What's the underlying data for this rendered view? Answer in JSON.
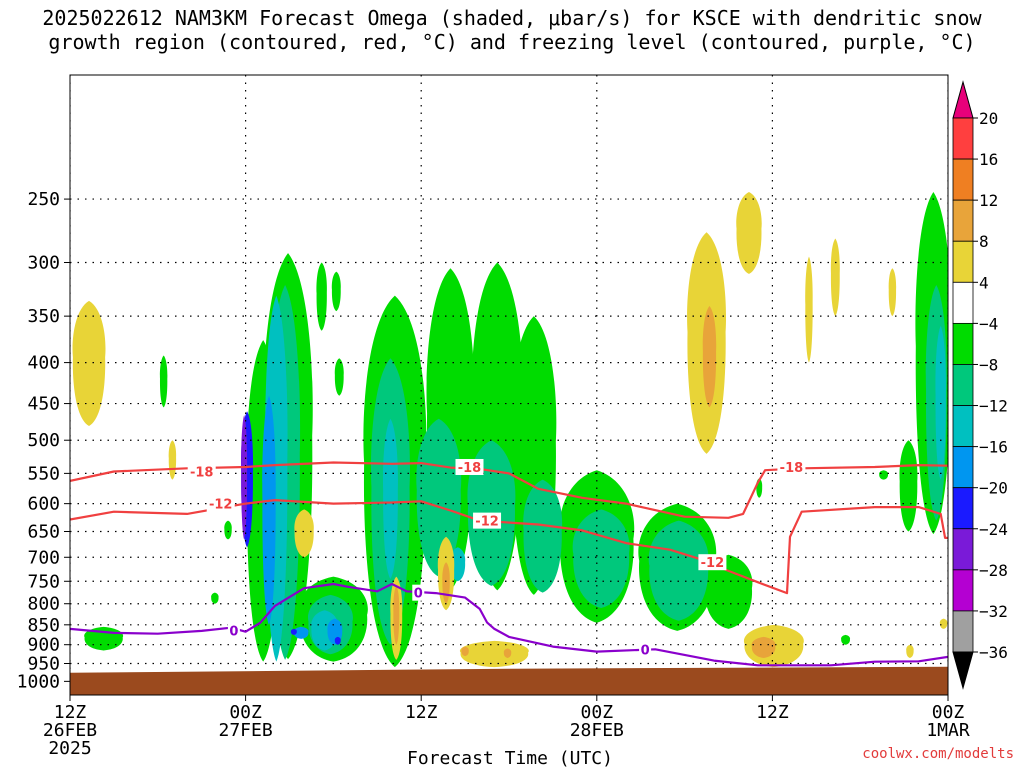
{
  "title": {
    "line1": "2025022612 NAM3KM Forecast Omega (shaded, μbar/s) for KSCE with dendritic snow",
    "line2": "growth region (contoured, red, °C) and freezing level (contoured, purple, °C)"
  },
  "watermark": "coolwx.com/modelts",
  "chart_data": {
    "type": "heatmap",
    "title": "2025022612 NAM3KM Forecast Omega (shaded, μbar/s) for KSCE with dendritic snow growth region (contoured, red, °C) and freezing level (contoured, purple, °C)",
    "xlabel": "Forecast Time (UTC)",
    "ylabel": "",
    "x_ticks": [
      {
        "hour": 0,
        "label": [
          "12Z",
          "26FEB",
          "2025"
        ]
      },
      {
        "hour": 12,
        "label": [
          "00Z",
          "27FEB"
        ]
      },
      {
        "hour": 24,
        "label": [
          "12Z"
        ]
      },
      {
        "hour": 36,
        "label": [
          "00Z",
          "28FEB"
        ]
      },
      {
        "hour": 48,
        "label": [
          "12Z"
        ]
      },
      {
        "hour": 60,
        "label": [
          "00Z",
          "1MAR"
        ]
      }
    ],
    "xlim": [
      0,
      60
    ],
    "y_ticks": [
      250,
      300,
      350,
      400,
      450,
      500,
      550,
      600,
      650,
      700,
      750,
      800,
      850,
      900,
      950,
      1000
    ],
    "ylim": [
      1040,
      175
    ],
    "grid": true,
    "colorbar": {
      "levels": [
        20,
        16,
        12,
        8,
        4,
        -4,
        -8,
        -12,
        -16,
        -20,
        -24,
        -28,
        -32,
        -36
      ],
      "colors": [
        "#ff3f3f",
        "#ef7f22",
        "#e8a43a",
        "#e8d437",
        "#ffffff",
        "#00dc00",
        "#00c87c",
        "#00c0c0",
        "#0096f0",
        "#1a1aff",
        "#7a1ad8",
        "#b400d2",
        "#a0a0a0"
      ],
      "over_color": "#e8007a",
      "under_color": "#000000"
    },
    "terrain": {
      "color": "#9b4a1e",
      "surface_pressure": 970
    },
    "dgz_contours": [
      {
        "label": "-18",
        "color": "#f04040",
        "points": [
          [
            0,
            562
          ],
          [
            3,
            547
          ],
          [
            8,
            542
          ],
          [
            12,
            540
          ],
          [
            14,
            537
          ],
          [
            18,
            533
          ],
          [
            22,
            535
          ],
          [
            24,
            534
          ],
          [
            26,
            541
          ],
          [
            28,
            543
          ],
          [
            30,
            550
          ],
          [
            32,
            575
          ],
          [
            35,
            590
          ],
          [
            38,
            600
          ],
          [
            42,
            623
          ],
          [
            45,
            625
          ],
          [
            46,
            618
          ],
          [
            47,
            565
          ],
          [
            47.5,
            545
          ],
          [
            50,
            542
          ],
          [
            55,
            540
          ],
          [
            58,
            537
          ],
          [
            60,
            538
          ]
        ]
      },
      {
        "label": "-12",
        "color": "#f04040",
        "points": [
          [
            0,
            628
          ],
          [
            3,
            614
          ],
          [
            8,
            618
          ],
          [
            12,
            600
          ],
          [
            14,
            594
          ],
          [
            18,
            600
          ],
          [
            22,
            598
          ],
          [
            24,
            596
          ],
          [
            26,
            612
          ],
          [
            28,
            630
          ],
          [
            32,
            637
          ],
          [
            35,
            648
          ],
          [
            38,
            672
          ],
          [
            41,
            685
          ],
          [
            43,
            703
          ],
          [
            45,
            728
          ],
          [
            47,
            752
          ],
          [
            49,
            776
          ],
          [
            49.2,
            660
          ],
          [
            50,
            614
          ],
          [
            55,
            606
          ],
          [
            58,
            606
          ],
          [
            59.5,
            618
          ],
          [
            59.8,
            662
          ],
          [
            60,
            662
          ]
        ]
      }
    ],
    "freezing_contours": [
      {
        "label": "0",
        "color": "#8a00cc",
        "points": [
          [
            0,
            860
          ],
          [
            3,
            870
          ],
          [
            6,
            872
          ],
          [
            9,
            865
          ],
          [
            11,
            857
          ],
          [
            12,
            867
          ],
          [
            13,
            845
          ],
          [
            14,
            805
          ],
          [
            16,
            765
          ],
          [
            18,
            756
          ],
          [
            19,
            762
          ],
          [
            21,
            772
          ],
          [
            22,
            756
          ],
          [
            23,
            772
          ],
          [
            25,
            776
          ],
          [
            27,
            786
          ],
          [
            28,
            812
          ],
          [
            28.5,
            844
          ],
          [
            29,
            860
          ],
          [
            30,
            880
          ],
          [
            33,
            905
          ],
          [
            36,
            918
          ],
          [
            40,
            912
          ],
          [
            44,
            942
          ],
          [
            47,
            955
          ],
          [
            52,
            955
          ],
          [
            55,
            945
          ],
          [
            58,
            944
          ],
          [
            60,
            932
          ]
        ]
      }
    ],
    "omega_regions": [
      {
        "value": -6,
        "hour": 14.9,
        "p_top": 292,
        "p_bot": 938,
        "width": 3.3
      },
      {
        "value": -6,
        "hour": 13.2,
        "p_top": 375,
        "p_bot": 945,
        "width": 2.2
      },
      {
        "value": -6,
        "hour": 17.2,
        "p_top": 300,
        "p_bot": 365,
        "width": 0.7
      },
      {
        "value": -6,
        "hour": 18.2,
        "p_top": 308,
        "p_bot": 345,
        "width": 0.6
      },
      {
        "value": -6,
        "hour": 18.4,
        "p_top": 395,
        "p_bot": 440,
        "width": 0.6
      },
      {
        "value": -6,
        "hour": 6.4,
        "p_top": 392,
        "p_bot": 455,
        "width": 0.5
      },
      {
        "value": -6,
        "hour": 10.8,
        "p_top": 630,
        "p_bot": 665,
        "width": 0.5
      },
      {
        "value": -6,
        "hour": 9.9,
        "p_top": 775,
        "p_bot": 800,
        "width": 0.5
      },
      {
        "value": -6,
        "hour": 22.2,
        "p_top": 330,
        "p_bot": 960,
        "width": 4.2
      },
      {
        "value": -6,
        "hour": 26.0,
        "p_top": 305,
        "p_bot": 770,
        "width": 3.2
      },
      {
        "value": -6,
        "hour": 29.2,
        "p_top": 300,
        "p_bot": 770,
        "width": 3.4
      },
      {
        "value": -6,
        "hour": 31.7,
        "p_top": 350,
        "p_bot": 780,
        "width": 3.0
      },
      {
        "value": -6,
        "hour": 36.0,
        "p_top": 545,
        "p_bot": 845,
        "width": 5.0
      },
      {
        "value": -6,
        "hour": 41.5,
        "p_top": 600,
        "p_bot": 865,
        "width": 5.2
      },
      {
        "value": -6,
        "hour": 45.0,
        "p_top": 695,
        "p_bot": 860,
        "width": 3.2
      },
      {
        "value": -6,
        "hour": 18.0,
        "p_top": 740,
        "p_bot": 945,
        "width": 4.6
      },
      {
        "value": -6,
        "hour": 2.3,
        "p_top": 855,
        "p_bot": 915,
        "width": 2.6
      },
      {
        "value": -6,
        "hour": 59.0,
        "p_top": 245,
        "p_bot": 655,
        "width": 2.4
      },
      {
        "value": -6,
        "hour": 57.3,
        "p_top": 500,
        "p_bot": 650,
        "width": 1.2
      },
      {
        "value": -6,
        "hour": 55.6,
        "p_top": 545,
        "p_bot": 560,
        "width": 0.6
      },
      {
        "value": -6,
        "hour": 53.0,
        "p_top": 875,
        "p_bot": 900,
        "width": 0.6
      },
      {
        "value": -6,
        "hour": 47.1,
        "p_top": 558,
        "p_bot": 590,
        "width": 0.4
      },
      {
        "value": -10,
        "hour": 14.7,
        "p_top": 320,
        "p_bot": 940,
        "width": 2.0
      },
      {
        "value": -10,
        "hour": 21.9,
        "p_top": 395,
        "p_bot": 900,
        "width": 2.6
      },
      {
        "value": -10,
        "hour": 25.2,
        "p_top": 470,
        "p_bot": 740,
        "width": 3.0
      },
      {
        "value": -10,
        "hour": 28.8,
        "p_top": 500,
        "p_bot": 760,
        "width": 3.2
      },
      {
        "value": -10,
        "hour": 32.3,
        "p_top": 560,
        "p_bot": 775,
        "width": 2.6
      },
      {
        "value": -10,
        "hour": 36.3,
        "p_top": 610,
        "p_bot": 810,
        "width": 3.8
      },
      {
        "value": -10,
        "hour": 41.6,
        "p_top": 630,
        "p_bot": 840,
        "width": 4.0
      },
      {
        "value": -10,
        "hour": 17.8,
        "p_top": 780,
        "p_bot": 925,
        "width": 3.0
      },
      {
        "value": -10,
        "hour": 59.2,
        "p_top": 320,
        "p_bot": 630,
        "width": 1.4
      },
      {
        "value": -14,
        "hour": 14.1,
        "p_top": 330,
        "p_bot": 945,
        "width": 1.5
      },
      {
        "value": -14,
        "hour": 21.9,
        "p_top": 470,
        "p_bot": 745,
        "width": 1.0
      },
      {
        "value": -14,
        "hour": 17.4,
        "p_top": 815,
        "p_bot": 915,
        "width": 1.8
      },
      {
        "value": -14,
        "hour": 26.5,
        "p_top": 680,
        "p_bot": 750,
        "width": 1.0
      },
      {
        "value": -14,
        "hour": 59.5,
        "p_top": 360,
        "p_bot": 560,
        "width": 0.7
      },
      {
        "value": -18,
        "hour": 13.6,
        "p_top": 440,
        "p_bot": 850,
        "width": 0.9
      },
      {
        "value": -18,
        "hour": 15.8,
        "p_top": 855,
        "p_bot": 885,
        "width": 1.0
      },
      {
        "value": -18,
        "hour": 18.1,
        "p_top": 835,
        "p_bot": 900,
        "width": 1.0
      },
      {
        "value": -22,
        "hour": 12.1,
        "p_top": 460,
        "p_bot": 680,
        "width": 0.8
      },
      {
        "value": -22,
        "hour": 15.3,
        "p_top": 860,
        "p_bot": 875,
        "width": 0.4
      },
      {
        "value": -22,
        "hour": 18.3,
        "p_top": 880,
        "p_bot": 900,
        "width": 0.4
      },
      {
        "value": -26,
        "hour": 11.9,
        "p_top": 465,
        "p_bot": 665,
        "width": 0.4
      },
      {
        "value": 6,
        "hour": 1.3,
        "p_top": 335,
        "p_bot": 480,
        "width": 2.2
      },
      {
        "value": 6,
        "hour": 7.0,
        "p_top": 500,
        "p_bot": 560,
        "width": 0.5
      },
      {
        "value": 6,
        "hour": 16.0,
        "p_top": 610,
        "p_bot": 700,
        "width": 1.3
      },
      {
        "value": 6,
        "hour": 22.3,
        "p_top": 740,
        "p_bot": 940,
        "width": 0.8
      },
      {
        "value": 6,
        "hour": 25.7,
        "p_top": 660,
        "p_bot": 815,
        "width": 1.1
      },
      {
        "value": 6,
        "hour": 29.0,
        "p_top": 890,
        "p_bot": 960,
        "width": 4.6
      },
      {
        "value": 6,
        "hour": 43.5,
        "p_top": 275,
        "p_bot": 520,
        "width": 2.6
      },
      {
        "value": 6,
        "hour": 46.4,
        "p_top": 245,
        "p_bot": 310,
        "width": 1.7
      },
      {
        "value": 6,
        "hour": 48.1,
        "p_top": 850,
        "p_bot": 960,
        "width": 4.0
      },
      {
        "value": 6,
        "hour": 50.5,
        "p_top": 295,
        "p_bot": 400,
        "width": 0.5
      },
      {
        "value": 6,
        "hour": 52.3,
        "p_top": 280,
        "p_bot": 350,
        "width": 0.6
      },
      {
        "value": 6,
        "hour": 56.2,
        "p_top": 305,
        "p_bot": 350,
        "width": 0.5
      },
      {
        "value": 6,
        "hour": 57.4,
        "p_top": 900,
        "p_bot": 935,
        "width": 0.5
      },
      {
        "value": 6,
        "hour": 59.7,
        "p_top": 835,
        "p_bot": 860,
        "width": 0.5
      },
      {
        "value": 10,
        "hour": 43.7,
        "p_top": 340,
        "p_bot": 455,
        "width": 0.9
      },
      {
        "value": 10,
        "hour": 22.3,
        "p_top": 760,
        "p_bot": 900,
        "width": 0.4
      },
      {
        "value": 10,
        "hour": 25.7,
        "p_top": 710,
        "p_bot": 800,
        "width": 0.5
      },
      {
        "value": 10,
        "hour": 47.4,
        "p_top": 880,
        "p_bot": 935,
        "width": 1.6
      },
      {
        "value": 10,
        "hour": 27.0,
        "p_top": 905,
        "p_bot": 930,
        "width": 0.5
      },
      {
        "value": 10,
        "hour": 29.9,
        "p_top": 910,
        "p_bot": 935,
        "width": 0.5
      }
    ],
    "contour_labels": [
      {
        "text": "-18",
        "hour": 9.0,
        "pressure": 547,
        "color": "#f04040"
      },
      {
        "text": "-18",
        "hour": 27.3,
        "pressure": 540,
        "color": "#f04040"
      },
      {
        "text": "-18",
        "hour": 49.3,
        "pressure": 540,
        "color": "#f04040"
      },
      {
        "text": "-12",
        "hour": 10.3,
        "pressure": 600,
        "color": "#f04040"
      },
      {
        "text": "-12",
        "hour": 28.5,
        "pressure": 630,
        "color": "#f04040"
      },
      {
        "text": "-12",
        "hour": 43.9,
        "pressure": 710,
        "color": "#f04040"
      },
      {
        "text": "0",
        "hour": 11.2,
        "pressure": 864,
        "color": "#8a00cc"
      },
      {
        "text": "0",
        "hour": 23.8,
        "pressure": 775,
        "color": "#8a00cc"
      },
      {
        "text": "0",
        "hour": 39.3,
        "pressure": 912,
        "color": "#8a00cc"
      }
    ]
  }
}
